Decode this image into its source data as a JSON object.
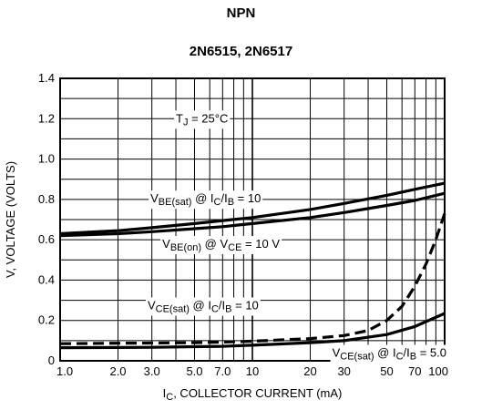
{
  "header": {
    "type_label": "NPN",
    "part_numbers": "2N6515, 2N6517"
  },
  "chart_data": {
    "type": "line",
    "title": "NPN",
    "subtitle": "2N6515, 2N6517",
    "xlabel": {
      "main": "I",
      "sub": "C",
      "rest": ", COLLECTOR CURRENT (mA)"
    },
    "ylabel": "V, VOLTAGE (VOLTS)",
    "x_scale": "log",
    "xlim": [
      1,
      100
    ],
    "ylim": [
      0,
      1.4
    ],
    "grid": true,
    "x_ticks": [
      1,
      2,
      3,
      5,
      7,
      10,
      20,
      30,
      50,
      70,
      100
    ],
    "x_tick_labels": [
      "1.0",
      "2.0",
      "3.0",
      "5.0",
      "7.0",
      "10",
      "20",
      "30",
      "50",
      "70",
      "100"
    ],
    "y_ticks": [
      0,
      0.2,
      0.4,
      0.6,
      0.8,
      1.0,
      1.2,
      1.4
    ],
    "y_tick_labels": [
      "0",
      "0.2",
      "0.4",
      "0.6",
      "0.8",
      "1.0",
      "1.2",
      "1.4"
    ],
    "annotation_tj": {
      "pre": "T",
      "sub": "J",
      "post": " = 25°C"
    },
    "series": [
      {
        "key": "vbe_sat",
        "style": "solid",
        "color": "#000000",
        "x": [
          1,
          2,
          3,
          5,
          7,
          10,
          20,
          30,
          50,
          70,
          100
        ],
        "y": [
          0.63,
          0.645,
          0.66,
          0.68,
          0.695,
          0.71,
          0.75,
          0.78,
          0.82,
          0.85,
          0.88
        ],
        "label": [
          {
            "t": "V"
          },
          {
            "t": "BE(sat)",
            "sub": true
          },
          {
            "t": " @ I"
          },
          {
            "t": "C",
            "sub": true
          },
          {
            "t": "/I"
          },
          {
            "t": "B",
            "sub": true
          },
          {
            "t": " = 10"
          }
        ]
      },
      {
        "key": "vbe_on",
        "style": "solid",
        "color": "#000000",
        "x": [
          1,
          2,
          3,
          5,
          7,
          10,
          20,
          30,
          50,
          70,
          100
        ],
        "y": [
          0.62,
          0.63,
          0.64,
          0.655,
          0.665,
          0.68,
          0.71,
          0.735,
          0.77,
          0.795,
          0.83
        ],
        "label": [
          {
            "t": "V"
          },
          {
            "t": "BE(on)",
            "sub": true
          },
          {
            "t": " @ V"
          },
          {
            "t": "CE",
            "sub": true
          },
          {
            "t": " = 10 V"
          }
        ]
      },
      {
        "key": "vce_sat_10",
        "style": "dashed",
        "color": "#000000",
        "x": [
          1,
          2,
          3,
          5,
          7,
          10,
          20,
          30,
          40,
          50,
          60,
          70,
          80,
          90,
          100
        ],
        "y": [
          0.085,
          0.087,
          0.088,
          0.09,
          0.093,
          0.097,
          0.11,
          0.125,
          0.15,
          0.2,
          0.27,
          0.37,
          0.48,
          0.6,
          0.73
        ],
        "label": [
          {
            "t": "V"
          },
          {
            "t": "CE(sat)",
            "sub": true
          },
          {
            "t": " @ I"
          },
          {
            "t": "C",
            "sub": true
          },
          {
            "t": "/I"
          },
          {
            "t": "B",
            "sub": true
          },
          {
            "t": " = 10"
          }
        ]
      },
      {
        "key": "vce_sat_5",
        "style": "solid",
        "color": "#000000",
        "x": [
          1,
          2,
          3,
          5,
          7,
          10,
          20,
          30,
          50,
          70,
          100
        ],
        "y": [
          0.065,
          0.066,
          0.067,
          0.07,
          0.072,
          0.077,
          0.09,
          0.1,
          0.13,
          0.17,
          0.235
        ],
        "label": [
          {
            "t": "V"
          },
          {
            "t": "CE(sat)",
            "sub": true
          },
          {
            "t": " @ I"
          },
          {
            "t": "C",
            "sub": true
          },
          {
            "t": "/I"
          },
          {
            "t": "B",
            "sub": true
          },
          {
            "t": " = 5.0"
          }
        ]
      }
    ]
  }
}
